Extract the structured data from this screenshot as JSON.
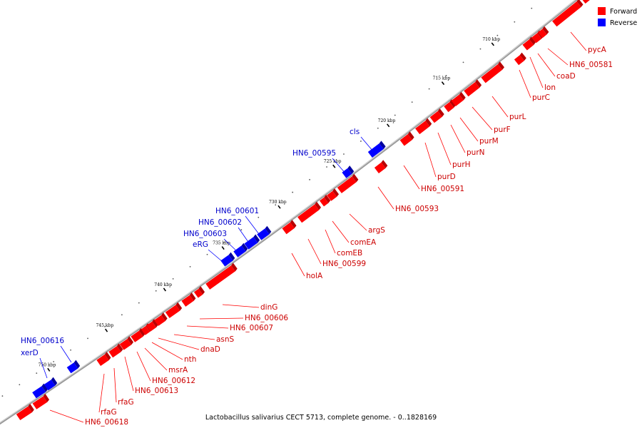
{
  "caption": "Lactobacillus salivarius CECT 5713, complete genome. - 0..1828169",
  "legend": [
    {
      "label": "Forward",
      "color": "#ff0000"
    },
    {
      "label": "Reverse",
      "color": "#0000ff"
    }
  ],
  "colors": {
    "forward": "#ff0000",
    "forward_side": "#b80000",
    "forward_top": "#ff6a6a",
    "reverse": "#0000ff",
    "reverse_side": "#0000a0",
    "reverse_top": "#6a6aff",
    "forward_label": "#cc0000",
    "reverse_label": "#0000cc",
    "backbone": "#999999"
  },
  "tick_labels": [
    "710 kbp",
    "715 kbp",
    "720 kbp",
    "725 kbp",
    "730 kbp",
    "735 kbp",
    "740 kbp",
    "745 kbp",
    "750 kbp"
  ],
  "forward_genes": [
    "pycA",
    "HN6_00581",
    "coaD",
    "lon",
    "purC",
    "purL",
    "purF",
    "purM",
    "purN",
    "purH",
    "purD",
    "HN6_00591",
    "HN6_00593",
    "argS",
    "comEA",
    "comEB",
    "HN6_00599",
    "holA",
    "dinG",
    "HN6_00606",
    "HN6_00607",
    "asnS",
    "dnaD",
    "nth",
    "msrA",
    "HN6_00612",
    "HN6_00613",
    "rfaG",
    "rfaG",
    "HN6_00618"
  ],
  "reverse_genes": [
    "cls",
    "HN6_00595",
    "HN6_00601",
    "HN6_00602",
    "HN6_00603",
    "eRG",
    "HN6_00616",
    "xerD"
  ]
}
